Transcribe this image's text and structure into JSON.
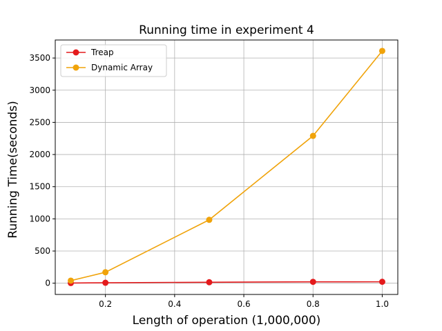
{
  "chart_data": {
    "type": "line",
    "title": "Running time in experiment 4",
    "xlabel": "Length of operation (1,000,000)",
    "ylabel": "Running Time(seconds)",
    "xlim": [
      0.055,
      1.045
    ],
    "ylim": [
      -175,
      3780
    ],
    "xticks": [
      0.2,
      0.4,
      0.6,
      0.8,
      1.0
    ],
    "xtick_labels": [
      "0.2",
      "0.4",
      "0.6",
      "0.8",
      "1.0"
    ],
    "yticks": [
      0,
      500,
      1000,
      1500,
      2000,
      2500,
      3000,
      3500
    ],
    "ytick_labels": [
      "0",
      "500",
      "1000",
      "1500",
      "2000",
      "2500",
      "3000",
      "3500"
    ],
    "grid": true,
    "legend_position": "top-left",
    "series": [
      {
        "name": "Treap",
        "color": "#e41a1c",
        "marker": "circle",
        "x": [
          0.1,
          0.2,
          0.5,
          0.8,
          1.0
        ],
        "y": [
          3,
          7,
          15,
          21,
          22
        ]
      },
      {
        "name": "Dynamic Array",
        "color": "#f0a30a",
        "marker": "circle",
        "x": [
          0.1,
          0.2,
          0.5,
          0.8,
          1.0
        ],
        "y": [
          40,
          170,
          985,
          2290,
          3610
        ]
      }
    ]
  }
}
